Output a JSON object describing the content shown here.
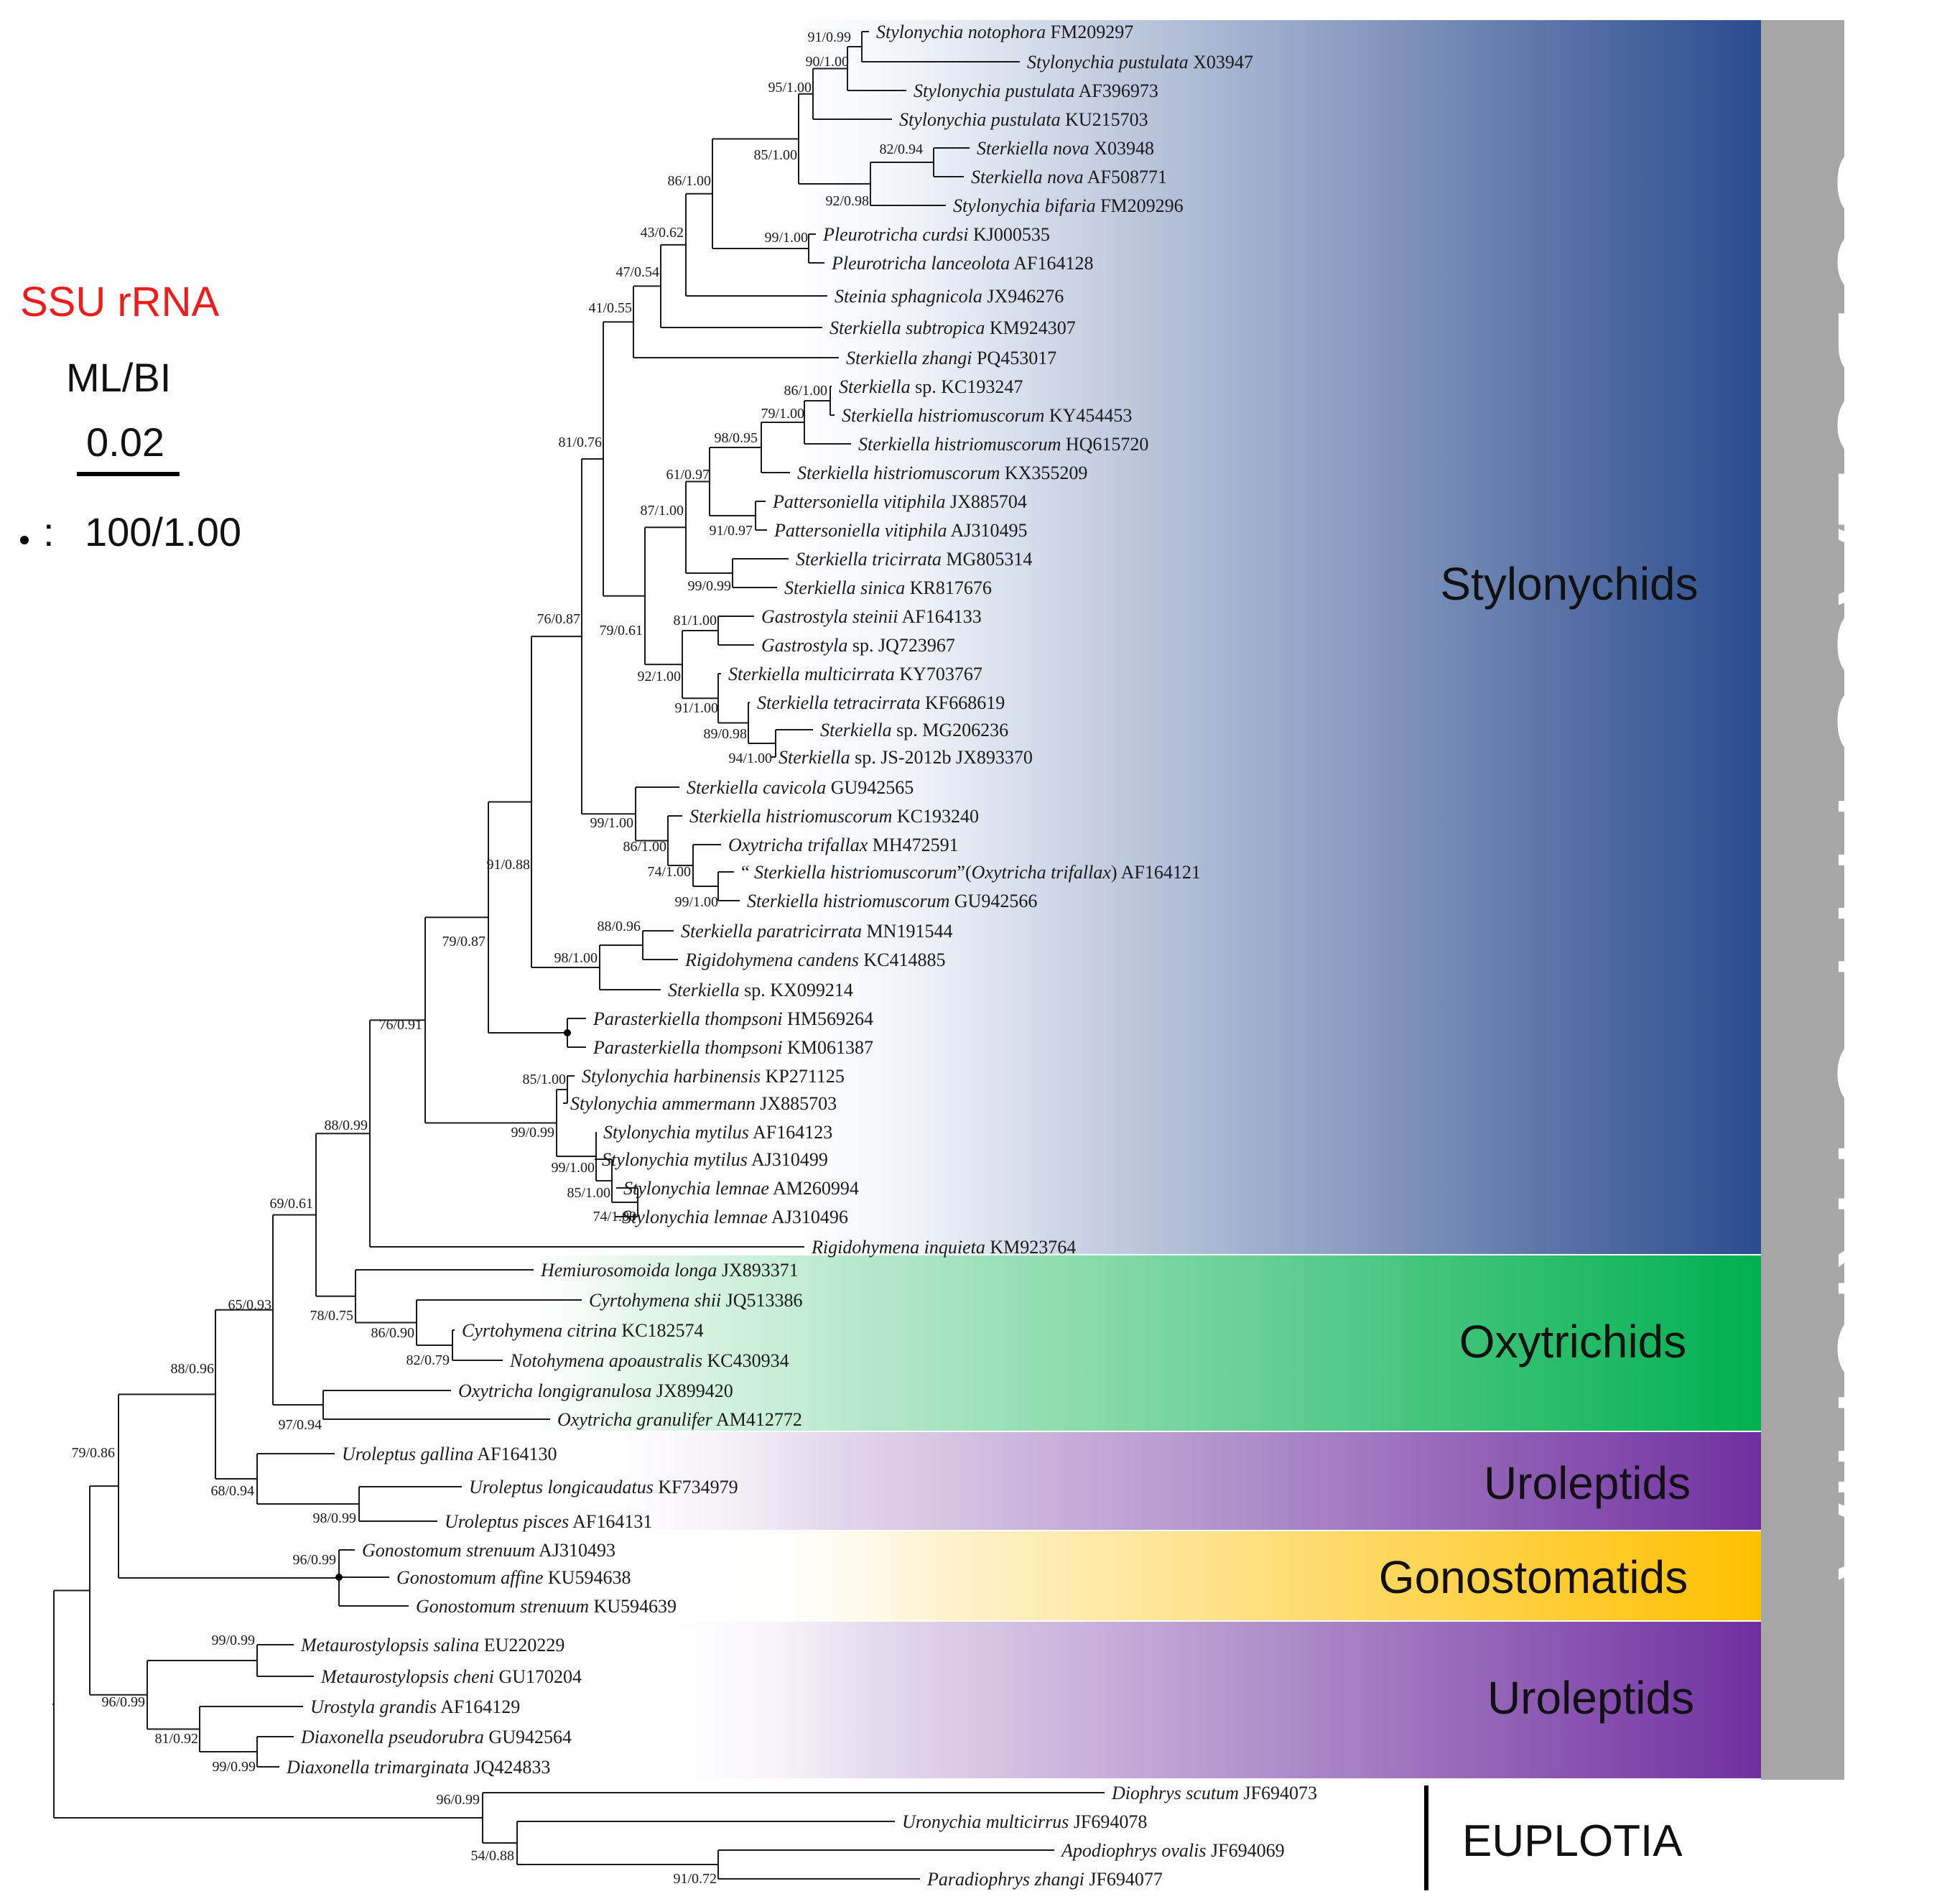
{
  "legend": {
    "title": "SSU rRNA",
    "support_type": "ML/BI",
    "scale_value": "0.02",
    "dot_meaning": "100/1.00",
    "dot_colon": ":"
  },
  "highlight_color": "#e8141b",
  "clades": [
    {
      "id": "stylonychids",
      "label": "Stylonychids",
      "color": "#2a4b8d"
    },
    {
      "id": "oxytrichids",
      "label": "Oxytrichids",
      "color": "#00b04f"
    },
    {
      "id": "uroleptids-1",
      "label": "Uroleptids",
      "color": "#7030a0"
    },
    {
      "id": "gonostomatids",
      "label": "Gonostomatids",
      "color": "#ffc000"
    },
    {
      "id": "uroleptids-2",
      "label": "Uroleptids",
      "color": "#7030a0"
    }
  ],
  "subclass": {
    "label": "SUBCLASS HYPOTRICHIA",
    "color": "#a6a6a6"
  },
  "outgroup": {
    "label": "EUPLOTIA"
  },
  "taxa": [
    {
      "id": "t1",
      "species": "Stylonychia notophora",
      "acc": "FM209297"
    },
    {
      "id": "t2",
      "species": "Stylonychia pustulata",
      "acc": "X03947"
    },
    {
      "id": "t3",
      "species": "Stylonychia pustulata",
      "acc": "AF396973"
    },
    {
      "id": "t4",
      "species": "Stylonychia pustulata",
      "acc": "KU215703"
    },
    {
      "id": "t5",
      "species": "Sterkiella nova",
      "acc": "X03948"
    },
    {
      "id": "t6",
      "species": "Sterkiella nova",
      "acc": "AF508771"
    },
    {
      "id": "t7",
      "species": "Stylonychia bifaria",
      "acc": "FM209296"
    },
    {
      "id": "t8",
      "species": "Pleurotricha curdsi",
      "acc": "KJ000535"
    },
    {
      "id": "t9",
      "species": "Pleurotricha lanceolota",
      "acc": "AF164128"
    },
    {
      "id": "t10",
      "species": "Steinia sphagnicola",
      "acc": "JX946276"
    },
    {
      "id": "t11",
      "species": "Sterkiella subtropica",
      "acc": "KM924307"
    },
    {
      "id": "t12",
      "species": "Sterkiella zhangi",
      "acc": "PQ453017"
    },
    {
      "id": "t13",
      "species": "Sterkiella",
      "extra": "sp.",
      "acc": "KC193247"
    },
    {
      "id": "t14",
      "species": "Sterkiella histriomuscorum",
      "acc": "KY454453"
    },
    {
      "id": "t15",
      "species": "Sterkiella histriomuscorum",
      "acc": "HQ615720"
    },
    {
      "id": "t16",
      "species": "Sterkiella histriomuscorum",
      "acc": "KX355209",
      "highlight": true
    },
    {
      "id": "t17",
      "species": "Pattersoniella vitiphila",
      "acc": "JX885704"
    },
    {
      "id": "t18",
      "species": "Pattersoniella vitiphila",
      "acc": "AJ310495"
    },
    {
      "id": "t19",
      "species": "Sterkiella tricirrata",
      "acc": "MG805314"
    },
    {
      "id": "t20",
      "species": "Sterkiella sinica",
      "acc": "KR817676"
    },
    {
      "id": "t21",
      "species": "Gastrostyla steinii",
      "acc": "AF164133"
    },
    {
      "id": "t22",
      "species": "Gastrostyla",
      "extra": "sp.",
      "acc": "JQ723967"
    },
    {
      "id": "t23",
      "species": "Sterkiella multicirrata",
      "acc": "KY703767"
    },
    {
      "id": "t24",
      "species": "Sterkiella tetracirrata",
      "acc": "KF668619"
    },
    {
      "id": "t25",
      "species": "Sterkiella",
      "extra": "sp.",
      "acc": "MG206236"
    },
    {
      "id": "t26",
      "species": "Sterkiella",
      "extra": "sp. JS-2012b",
      "acc": "JX893370"
    },
    {
      "id": "t27",
      "species": "Sterkiella cavicola",
      "acc": "GU942565"
    },
    {
      "id": "t28",
      "species": "Sterkiella histriomuscorum",
      "acc": "KC193240"
    },
    {
      "id": "t29",
      "species": "Oxytricha trifallax",
      "acc": "MH472591"
    },
    {
      "id": "t30",
      "prefix": "“ ",
      "species": "Sterkiella histriomuscorum",
      "mid": "”(",
      "species2": "Oxytricha trifallax",
      "suffix": ")",
      "acc": "AF164121"
    },
    {
      "id": "t31",
      "species": "Sterkiella histriomuscorum",
      "acc": "GU942566"
    },
    {
      "id": "t32",
      "species": "Sterkiella paratricirrata",
      "acc": "MN191544"
    },
    {
      "id": "t33",
      "species": "Rigidohymena candens",
      "acc": "KC414885"
    },
    {
      "id": "t34",
      "species": "Sterkiella",
      "extra": "sp.",
      "acc": "KX099214"
    },
    {
      "id": "t35",
      "species": "Parasterkiella thompsoni",
      "acc": "HM569264"
    },
    {
      "id": "t36",
      "species": "Parasterkiella thompsoni",
      "acc": "KM061387"
    },
    {
      "id": "t37",
      "species": "Stylonychia harbinensis",
      "acc": "KP271125"
    },
    {
      "id": "t38",
      "species": "Stylonychia ammermann",
      "acc": "JX885703"
    },
    {
      "id": "t39",
      "species": "Stylonychia mytilus",
      "acc": "AF164123"
    },
    {
      "id": "t40",
      "species": "Stylonychia mytilus",
      "acc": "AJ310499"
    },
    {
      "id": "t41",
      "species": "Stylonychia lemnae",
      "acc": "AM260994"
    },
    {
      "id": "t42",
      "species": "Stylonychia lemnae",
      "acc": "AJ310496"
    },
    {
      "id": "t43",
      "species": "Rigidohymena inquieta",
      "acc": "KM923764"
    },
    {
      "id": "t44",
      "species": "Hemiurosomoida longa",
      "acc": "JX893371"
    },
    {
      "id": "t45",
      "species": "Cyrtohymena shii",
      "acc": "JQ513386"
    },
    {
      "id": "t46",
      "species": "Cyrtohymena citrina",
      "acc": "KC182574"
    },
    {
      "id": "t47",
      "species": "Notohymena apoaustralis",
      "acc": "KC430934"
    },
    {
      "id": "t48",
      "species": "Oxytricha longigranulosa",
      "acc": "JX899420"
    },
    {
      "id": "t49",
      "species": "Oxytricha granulifer",
      "acc": "AM412772"
    },
    {
      "id": "t50",
      "species": "Uroleptus gallina",
      "acc": "AF164130"
    },
    {
      "id": "t51",
      "species": "Uroleptus longicaudatus",
      "acc": "KF734979"
    },
    {
      "id": "t52",
      "species": "Uroleptus pisces",
      "acc": "AF164131"
    },
    {
      "id": "t53",
      "species": "Gonostomum strenuum",
      "acc": "AJ310493"
    },
    {
      "id": "t54",
      "species": "Gonostomum affine",
      "acc": "KU594638"
    },
    {
      "id": "t55",
      "species": "Gonostomum strenuum",
      "acc": "KU594639"
    },
    {
      "id": "t56",
      "species": "Metaurostylopsis salina",
      "acc": "EU220229"
    },
    {
      "id": "t57",
      "species": "Metaurostylopsis cheni",
      "acc": "GU170204"
    },
    {
      "id": "t58",
      "species": "Urostyla grandis",
      "acc": "AF164129"
    },
    {
      "id": "t59",
      "species": "Diaxonella pseudorubra",
      "acc": "GU942564"
    },
    {
      "id": "t60",
      "species": "Diaxonella trimarginata",
      "acc": "JQ424833"
    },
    {
      "id": "t61",
      "species": "Diophrys scutum",
      "acc": "JF694073"
    },
    {
      "id": "t62",
      "species": "Uronychia multicirrus",
      "acc": "JF694078"
    },
    {
      "id": "t63",
      "species": "Apodiophrys ovalis",
      "acc": "JF694069"
    },
    {
      "id": "t64",
      "species": "Paradiophrys zhangi",
      "acc": "JF694077"
    }
  ],
  "nodes": [
    {
      "id": "n_t1_t2",
      "support": "91/0.99"
    },
    {
      "id": "n_t1_t3",
      "support": "90/1.00"
    },
    {
      "id": "n_t1_t4",
      "support": "95/1.00"
    },
    {
      "id": "n_t5_t6",
      "support": "82/0.94"
    },
    {
      "id": "n_t5_t7",
      "support": "92/0.98"
    },
    {
      "id": "n_t1_t7",
      "support": "85/1.00"
    },
    {
      "id": "n_t8_t9",
      "support": "99/1.00"
    },
    {
      "id": "n_t1_t9",
      "support": "86/1.00"
    },
    {
      "id": "n_t1_t10",
      "support": "43/0.62"
    },
    {
      "id": "n_t1_t11",
      "support": "47/0.54"
    },
    {
      "id": "n_t1_t12",
      "support": "41/0.55"
    },
    {
      "id": "n_t13_t14",
      "support": "86/1.00"
    },
    {
      "id": "n_t13_t15",
      "support": "79/1.00"
    },
    {
      "id": "n_t13_t16",
      "support": "98/0.95"
    },
    {
      "id": "n_t17_t18",
      "support": "91/0.97"
    },
    {
      "id": "n_t13_t18",
      "support": "61/0.97"
    },
    {
      "id": "n_t19_t20",
      "support": "99/0.99"
    },
    {
      "id": "n_t13_t20",
      "support": "87/1.00"
    },
    {
      "id": "n_t21_t22",
      "support": "81/1.00"
    },
    {
      "id": "n_t25_t26",
      "support": "94/1.00"
    },
    {
      "id": "n_t24_t26",
      "support": "89/0.98"
    },
    {
      "id": "n_t23_t26",
      "support": "91/1.00"
    },
    {
      "id": "n_t21_t26",
      "support": "92/1.00"
    },
    {
      "id": "n_t13_t26",
      "support": "79/0.61"
    },
    {
      "id": "n_t1_t26",
      "support": "81/0.76"
    },
    {
      "id": "n_t30_t31",
      "support": "99/1.00"
    },
    {
      "id": "n_t29_t31",
      "support": "74/1.00"
    },
    {
      "id": "n_t28_t31",
      "support": "86/1.00"
    },
    {
      "id": "n_t27_t31",
      "support": "99/1.00"
    },
    {
      "id": "n_t1_t31",
      "support": "76/0.87"
    },
    {
      "id": "n_t32_t33",
      "support": "88/0.96"
    },
    {
      "id": "n_t32_t34",
      "support": "98/1.00"
    },
    {
      "id": "n_t1_t34",
      "support": "91/0.88"
    },
    {
      "id": "n_t1_t36",
      "support": "79/0.87"
    },
    {
      "id": "n_t37_t38",
      "support": "85/1.00"
    },
    {
      "id": "n_t41_t42",
      "support": "74/1.00"
    },
    {
      "id": "n_t40_t42",
      "support": "85/1.00"
    },
    {
      "id": "n_t39_t42",
      "support": "99/1.00"
    },
    {
      "id": "n_t37_t42",
      "support": "99/0.99"
    },
    {
      "id": "n_t1_t42",
      "support": "76/0.91"
    },
    {
      "id": "n_t1_t43",
      "support": "88/0.99"
    },
    {
      "id": "n_t46_t47",
      "support": "82/0.79"
    },
    {
      "id": "n_t45_t47",
      "support": "86/0.90"
    },
    {
      "id": "n_t44_t47",
      "support": "78/0.75"
    },
    {
      "id": "n_t1_t47",
      "support": "69/0.61"
    },
    {
      "id": "n_t48_t49",
      "support": "97/0.94"
    },
    {
      "id": "n_t1_t49",
      "support": "65/0.93"
    },
    {
      "id": "n_t51_t52",
      "support": "98/0.99"
    },
    {
      "id": "n_t50_t52",
      "support": "68/0.94"
    },
    {
      "id": "n_t1_t52",
      "support": "88/0.96"
    },
    {
      "id": "n_t53_t55",
      "support": "96/0.99"
    },
    {
      "id": "n_t1_t55",
      "support": "79/0.86"
    },
    {
      "id": "n_t56_t57",
      "support": "99/0.99"
    },
    {
      "id": "n_t59_t60",
      "support": "99/0.99"
    },
    {
      "id": "n_t58_t60",
      "support": "81/0.92"
    },
    {
      "id": "n_t56_t60",
      "support": "96/0.99"
    },
    {
      "id": "n_t61_t64",
      "support": "96/0.99"
    },
    {
      "id": "n_t63_t64",
      "support": "91/0.72"
    },
    {
      "id": "n_t62_t64",
      "support": "54/0.88"
    }
  ]
}
